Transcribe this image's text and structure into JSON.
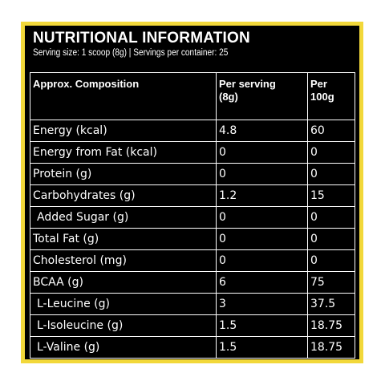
{
  "panel": {
    "title": "NUTRITIONAL INFORMATION",
    "subtitle": "Serving size: 1 scoop (8g) | Servings per container: 25",
    "border_color": "#f2d83a",
    "background_color": "#000000"
  },
  "table": {
    "headers": {
      "composition": "Approx. Composition",
      "per_serving_line1": "Per serving",
      "per_serving_line2": "(8g)",
      "per_100g_line1": "Per",
      "per_100g_line2": "100g"
    },
    "rows": [
      {
        "name": "Energy (kcal)",
        "per_serving": "4.8",
        "per_100g": "60"
      },
      {
        "name": "Energy from Fat (kcal)",
        "per_serving": "0",
        "per_100g": "0"
      },
      {
        "name": "Protein (g)",
        "per_serving": "0",
        "per_100g": "0"
      },
      {
        "name": "Carbohydrates (g)",
        "per_serving": "1.2",
        "per_100g": "15"
      },
      {
        "name": "Added Sugar (g)",
        "per_serving": "0",
        "per_100g": "0"
      },
      {
        "name": "Total Fat (g)",
        "per_serving": "0",
        "per_100g": "0"
      },
      {
        "name": "Cholesterol (mg)",
        "per_serving": "0",
        "per_100g": "0"
      },
      {
        "name": "BCAA (g)",
        "per_serving": "6",
        "per_100g": "75"
      },
      {
        "name": "L-Leucine (g)",
        "per_serving": "3",
        "per_100g": "37.5"
      },
      {
        "name": "L-Isoleucine (g)",
        "per_serving": "1.5",
        "per_100g": "18.75"
      },
      {
        "name": "L-Valine (g)",
        "per_serving": "1.5",
        "per_100g": "18.75"
      }
    ]
  }
}
